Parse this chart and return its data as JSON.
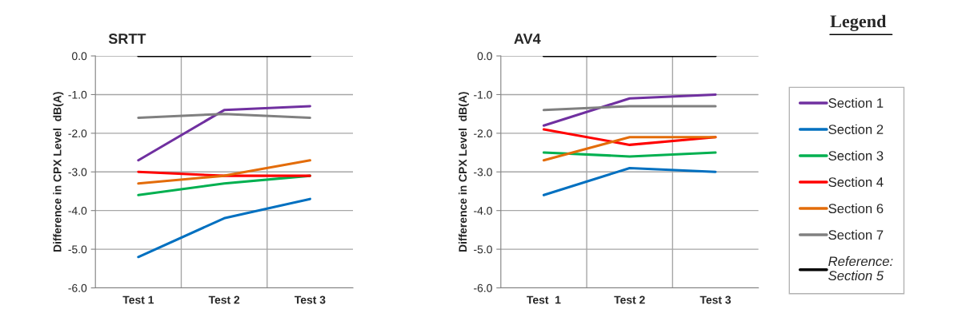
{
  "chart_data": [
    {
      "type": "line",
      "title": "SRTT",
      "ylabel": "Difference in CPX Level  dB(A)",
      "categories": [
        "Test 1",
        "Test 2",
        "Test 3"
      ],
      "ylim": [
        -6,
        0
      ],
      "yticks": [
        {
          "value": -6,
          "label": "-6.0"
        },
        {
          "value": -5,
          "label": "-5.0"
        },
        {
          "value": -4,
          "label": "-4.0"
        },
        {
          "value": -3,
          "label": "-3.0"
        },
        {
          "value": -2,
          "label": "-2.0"
        },
        {
          "value": -1,
          "label": "-1.0"
        },
        {
          "value": 0,
          "label": "0.0"
        }
      ],
      "grid": true,
      "legend": false,
      "marker": "none",
      "line_style": "solid",
      "series": [
        {
          "color": "#7030a0",
          "values": [
            -2.7,
            -1.4,
            -1.3
          ]
        },
        {
          "color": "#0070c0",
          "values": [
            -5.2,
            -4.2,
            -3.7
          ]
        },
        {
          "color": "#00b050",
          "values": [
            -3.6,
            -3.3,
            -3.1
          ]
        },
        {
          "color": "#ff0000",
          "values": [
            -3.0,
            -3.1,
            -3.1
          ]
        },
        {
          "color": "#e36c09",
          "values": [
            -3.3,
            -3.1,
            -2.7
          ]
        },
        {
          "color": "#808080",
          "values": [
            -1.6,
            -1.5,
            -1.6
          ]
        },
        {
          "color": "#000000",
          "values": [
            0,
            0,
            0
          ]
        }
      ]
    },
    {
      "type": "line",
      "title": "AV4",
      "ylabel": "Difference in CPX Level  dB(A)",
      "legend_title": "Legend",
      "categories": [
        "Test  1",
        "Test 2",
        "Test 3"
      ],
      "ylim": [
        -6,
        0
      ],
      "yticks": [
        {
          "value": -6,
          "label": "-6.0"
        },
        {
          "value": -5,
          "label": "-5.0"
        },
        {
          "value": -4,
          "label": "-4.0"
        },
        {
          "value": -3,
          "label": "-3.0"
        },
        {
          "value": -2,
          "label": "-2.0"
        },
        {
          "value": -1,
          "label": "-1.0"
        },
        {
          "value": 0,
          "label": "0.0"
        }
      ],
      "grid": true,
      "legend": "right",
      "marker": "none",
      "line_style": "solid",
      "series": [
        {
          "name": "Section 1",
          "color": "#7030a0",
          "values": [
            -1.8,
            -1.1,
            -1.0
          ]
        },
        {
          "name": "Section 2",
          "color": "#0070c0",
          "values": [
            -3.6,
            -2.9,
            -3.0
          ]
        },
        {
          "name": "Section 3",
          "color": "#00b050",
          "values": [
            -2.5,
            -2.6,
            -2.5
          ]
        },
        {
          "name": "Section 4",
          "color": "#ff0000",
          "values": [
            -1.9,
            -2.3,
            -2.1
          ]
        },
        {
          "name": "Section 6",
          "color": "#e36c09",
          "values": [
            -2.7,
            -2.1,
            -2.1
          ]
        },
        {
          "name": "Section 7",
          "color": "#808080",
          "values": [
            -1.4,
            -1.3,
            -1.3
          ]
        },
        {
          "name": "Reference:\nSection 5",
          "color": "#000000",
          "values": [
            0,
            0,
            0
          ]
        }
      ]
    }
  ]
}
